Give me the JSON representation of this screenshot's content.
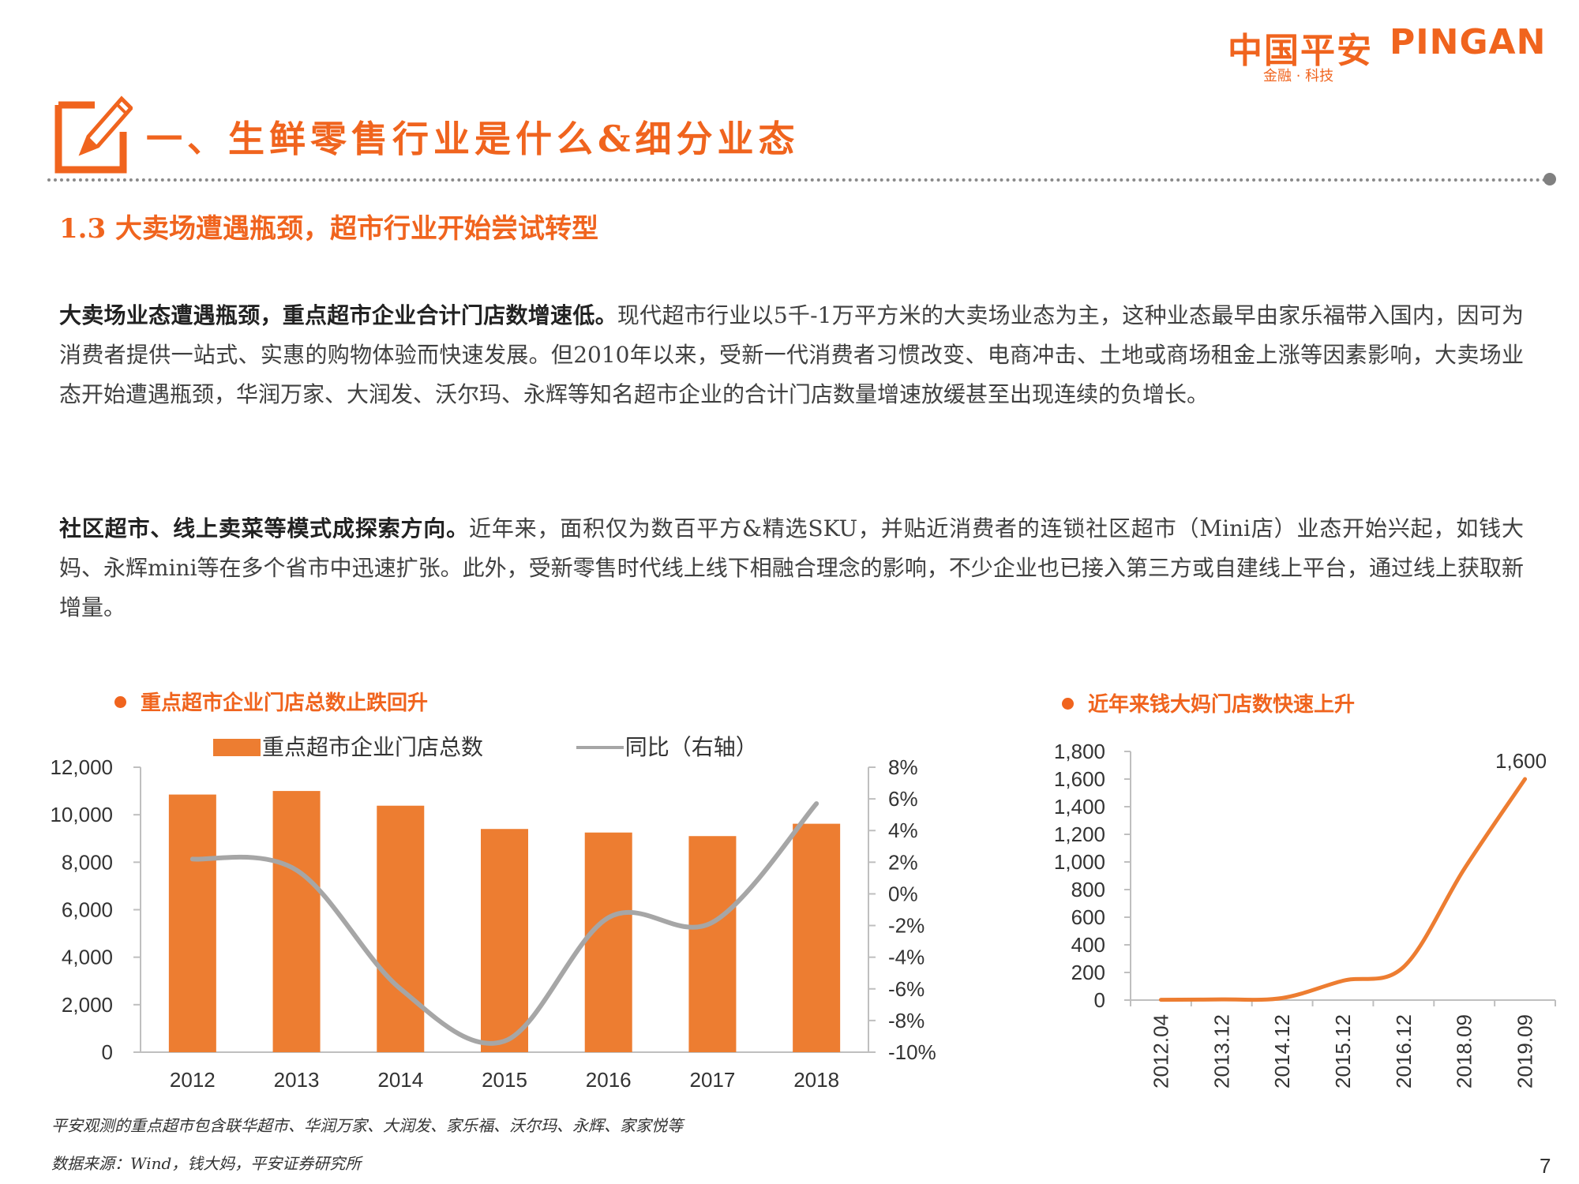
{
  "logo": {
    "cn": "中国平安",
    "en": "PINGAN",
    "sub": "金融 · 科技"
  },
  "page": {
    "title": "一、生鲜零售行业是什么&细分业态",
    "subtitle": "1.3  大卖场遭遇瓶颈，超市行业开始尝试转型",
    "para1_bold": "大卖场业态遭遇瓶颈，重点超市企业合计门店数增速低。",
    "para1_text": "现代超市行业以5千-1万平方米的大卖场业态为主，这种业态最早由家乐福带入国内，因可为消费者提供一站式、实惠的购物体验而快速发展。但2010年以来，受新一代消费者习惯改变、电商冲击、土地或商场租金上涨等因素影响，大卖场业态开始遭遇瓶颈，华润万家、大润发、沃尔玛、永辉等知名超市企业的合计门店数量增速放缓甚至出现连续的负增长。",
    "para2_bold": "社区超市、线上卖菜等模式成探索方向。",
    "para2_text": "近年来，面积仅为数百平方&精选SKU，并贴近消费者的连锁社区超市（Mini店）业态开始兴起，如钱大妈、永辉mini等在多个省市中迅速扩张。此外，受新零售时代线上线下相融合理念的影响，不少企业也已接入第三方或自建线上平台，通过线上获取新增量。",
    "note1": "平安观测的重点超市包含联华超市、华润万家、大润发、家乐福、沃尔玛、永辉、家家悦等",
    "note2": "数据来源：Wind，钱大妈，平安证券研究所",
    "page_number": "7"
  },
  "chart_data": [
    {
      "type": "bar",
      "title": "重点超市企业门店总数止跌回升",
      "categories": [
        "2012",
        "2013",
        "2014",
        "2015",
        "2016",
        "2017",
        "2018"
      ],
      "series": [
        {
          "name": "重点超市企业门店总数",
          "type": "bar",
          "axis": "left",
          "values": [
            10850,
            11000,
            10380,
            9400,
            9250,
            9100,
            9620
          ]
        },
        {
          "name": "同比（右轴）",
          "type": "line",
          "axis": "right",
          "values": [
            2.2,
            1.5,
            -6.0,
            -9.3,
            -1.5,
            -1.8,
            5.7
          ]
        }
      ],
      "yticks_left": [
        "12,000",
        "10,000",
        "8,000",
        "6,000",
        "4,000",
        "2,000",
        "0"
      ],
      "yticks_right": [
        "8%",
        "6%",
        "4%",
        "2%",
        "0%",
        "-2%",
        "-4%",
        "-6%",
        "-8%",
        "-10%"
      ],
      "ylim_left": [
        0,
        12000
      ],
      "ylim_right": [
        -10,
        8
      ],
      "colors": {
        "bar": "#ed7d31",
        "line": "#a6a6a6"
      },
      "legend": "top"
    },
    {
      "type": "line",
      "title": "近年来钱大妈门店数快速上升",
      "x": [
        "2012.04",
        "2013.12",
        "2014.12",
        "2015.12",
        "2016.12",
        "2018.09",
        "2019.09"
      ],
      "values": [
        2,
        5,
        15,
        140,
        240,
        950,
        1600
      ],
      "data_label": "1,600",
      "yticks": [
        "1,800",
        "1,600",
        "1,400",
        "1,200",
        "1,000",
        "800",
        "600",
        "400",
        "200",
        "0"
      ],
      "ylim": [
        0,
        1800
      ],
      "colors": {
        "line": "#ed7d31"
      }
    }
  ]
}
